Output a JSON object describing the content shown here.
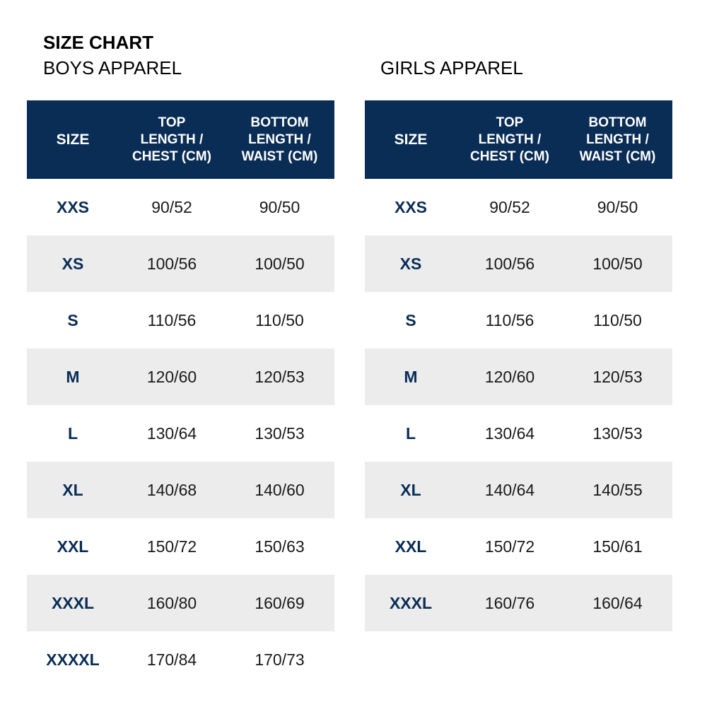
{
  "header": {
    "title": "SIZE CHART"
  },
  "colors": {
    "header_bg": "#0a2d56",
    "size_text": "#0a2d56",
    "row_shade": "#ececec"
  },
  "columns": {
    "size": "SIZE",
    "top_line1": "TOP",
    "top_line2": "LENGTH /",
    "top_line3": "CHEST (CM)",
    "bottom_line1": "BOTTOM",
    "bottom_line2": "LENGTH /",
    "bottom_line3": "WAIST (CM)"
  },
  "boys": {
    "title": "BOYS APPAREL",
    "rows": [
      {
        "size": "XXS",
        "top": "90/52",
        "bottom": "90/50"
      },
      {
        "size": "XS",
        "top": "100/56",
        "bottom": "100/50"
      },
      {
        "size": "S",
        "top": "110/56",
        "bottom": "110/50"
      },
      {
        "size": "M",
        "top": "120/60",
        "bottom": "120/53"
      },
      {
        "size": "L",
        "top": "130/64",
        "bottom": "130/53"
      },
      {
        "size": "XL",
        "top": "140/68",
        "bottom": "140/60"
      },
      {
        "size": "XXL",
        "top": "150/72",
        "bottom": "150/63"
      },
      {
        "size": "XXXL",
        "top": "160/80",
        "bottom": "160/69"
      },
      {
        "size": "XXXXL",
        "top": "170/84",
        "bottom": "170/73"
      }
    ]
  },
  "girls": {
    "title": "GIRLS APPAREL",
    "rows": [
      {
        "size": "XXS",
        "top": "90/52",
        "bottom": "90/50"
      },
      {
        "size": "XS",
        "top": "100/56",
        "bottom": "100/50"
      },
      {
        "size": "S",
        "top": "110/56",
        "bottom": "110/50"
      },
      {
        "size": "M",
        "top": "120/60",
        "bottom": "120/53"
      },
      {
        "size": "L",
        "top": "130/64",
        "bottom": "130/53"
      },
      {
        "size": "XL",
        "top": "140/64",
        "bottom": "140/55"
      },
      {
        "size": "XXL",
        "top": "150/72",
        "bottom": "150/61"
      },
      {
        "size": "XXXL",
        "top": "160/76",
        "bottom": "160/64"
      }
    ]
  }
}
